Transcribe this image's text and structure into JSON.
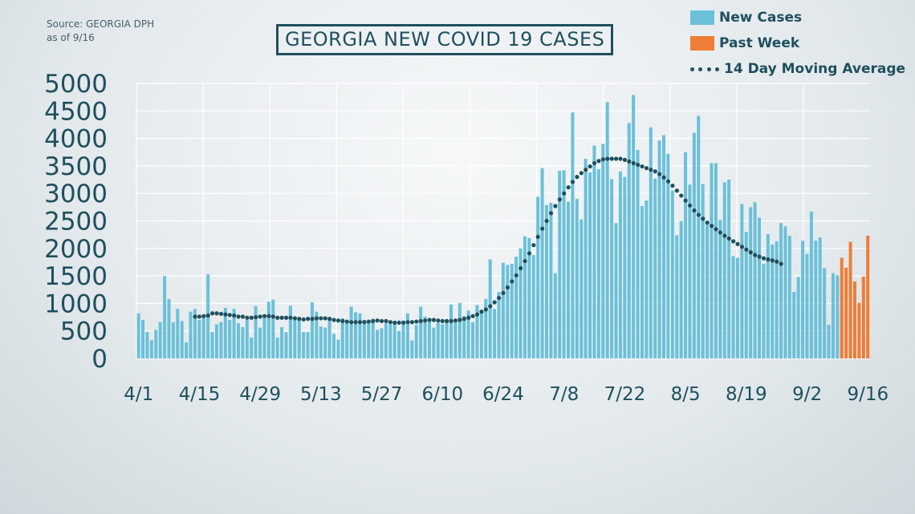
{
  "source_line1": "Source: GEORGIA DPH",
  "source_line2": "as of 9/16",
  "chart_data": {
    "type": "bar",
    "title": "GEORGIA NEW COVID 19 CASES",
    "colors": {
      "new_cases": "#6cc0d8",
      "past_week": "#ee7d36",
      "average": "#1f4f5e",
      "grid": "#ffffff",
      "text": "#1f4f5e"
    },
    "ylim": [
      0,
      5000
    ],
    "yticks": [
      0,
      500,
      1000,
      1500,
      2000,
      2500,
      3000,
      3500,
      4000,
      4500,
      5000
    ],
    "xticks": [
      "4/1",
      "4/15",
      "4/29",
      "5/13",
      "5/27",
      "6/10",
      "6/24",
      "7/8",
      "7/22",
      "8/5",
      "8/19",
      "9/2",
      "9/16"
    ],
    "legend": [
      "New Cases",
      "Past Week",
      "14 Day Moving Average"
    ],
    "legend_position": "top-right",
    "grid": true,
    "series": [
      {
        "name": "New Cases",
        "start_date": "4/1",
        "values": [
          820,
          700,
          480,
          330,
          520,
          660,
          1500,
          1080,
          660,
          900,
          680,
          290,
          850,
          900,
          700,
          750,
          1530,
          480,
          620,
          660,
          920,
          700,
          900,
          640,
          570,
          700,
          380,
          950,
          560,
          800,
          1030,
          1070,
          380,
          570,
          480,
          960,
          700,
          700,
          480,
          480,
          1020,
          850,
          580,
          560,
          700,
          450,
          340,
          730,
          640,
          940,
          840,
          820,
          700,
          690,
          720,
          520,
          550,
          640,
          620,
          620,
          500,
          690,
          820,
          330,
          610,
          940,
          760,
          730,
          560,
          650,
          620,
          700,
          980,
          670,
          1010,
          770,
          870,
          660,
          970,
          880,
          1080,
          1800,
          900,
          1210,
          1740,
          1700,
          1720,
          1850,
          2000,
          2220,
          2190,
          1880,
          2940,
          3460,
          2790,
          2830,
          1550,
          3410,
          3420,
          2850,
          4470,
          2900,
          2530,
          3630,
          3380,
          3870,
          3440,
          3900,
          4660,
          3260,
          2460,
          3400,
          3300,
          4280,
          4790,
          3790,
          2770,
          2870,
          4200,
          3270,
          3960,
          4060,
          3720,
          3050,
          2240,
          2500,
          3750,
          3160,
          4100,
          4410,
          3170,
          2440,
          3550,
          3550,
          2520,
          3200,
          3250,
          1860,
          1830,
          2810,
          2300,
          2750,
          2840,
          2560,
          1720,
          2260,
          2070,
          2130,
          2460,
          2400,
          2230,
          1210,
          1480,
          2140,
          1900,
          2670,
          2140,
          2200,
          1640,
          610,
          1550,
          1510,
          1830,
          1650,
          2120,
          1400,
          1010,
          1490,
          2230
        ]
      },
      {
        "name": "Past Week",
        "start_date": "9/10",
        "values": [
          1830,
          1650,
          2120,
          1400,
          1010,
          1490,
          2230
        ]
      },
      {
        "name": "14 Day Moving Average",
        "start_date": "4/14",
        "values": [
          760,
          760,
          770,
          780,
          820,
          820,
          810,
          800,
          790,
          780,
          760,
          760,
          740,
          740,
          750,
          760,
          770,
          770,
          760,
          740,
          740,
          740,
          740,
          730,
          720,
          710,
          720,
          720,
          730,
          730,
          730,
          720,
          700,
          690,
          680,
          670,
          660,
          660,
          660,
          660,
          670,
          680,
          690,
          680,
          680,
          660,
          650,
          650,
          650,
          660,
          660,
          670,
          680,
          690,
          700,
          700,
          690,
          680,
          680,
          680,
          690,
          700,
          720,
          740,
          770,
          800,
          850,
          890,
          950,
          1020,
          1100,
          1190,
          1290,
          1400,
          1510,
          1640,
          1770,
          1910,
          2060,
          2210,
          2360,
          2500,
          2640,
          2770,
          2890,
          3000,
          3110,
          3210,
          3300,
          3370,
          3430,
          3490,
          3550,
          3590,
          3620,
          3630,
          3630,
          3630,
          3630,
          3610,
          3580,
          3550,
          3520,
          3490,
          3460,
          3430,
          3400,
          3350,
          3290,
          3220,
          3140,
          3050,
          2960,
          2870,
          2780,
          2690,
          2610,
          2540,
          2470,
          2410,
          2350,
          2290,
          2230,
          2180,
          2130,
          2080,
          2030,
          1980,
          1930,
          1880,
          1850,
          1820,
          1800,
          1780,
          1760,
          1720
        ]
      }
    ]
  }
}
